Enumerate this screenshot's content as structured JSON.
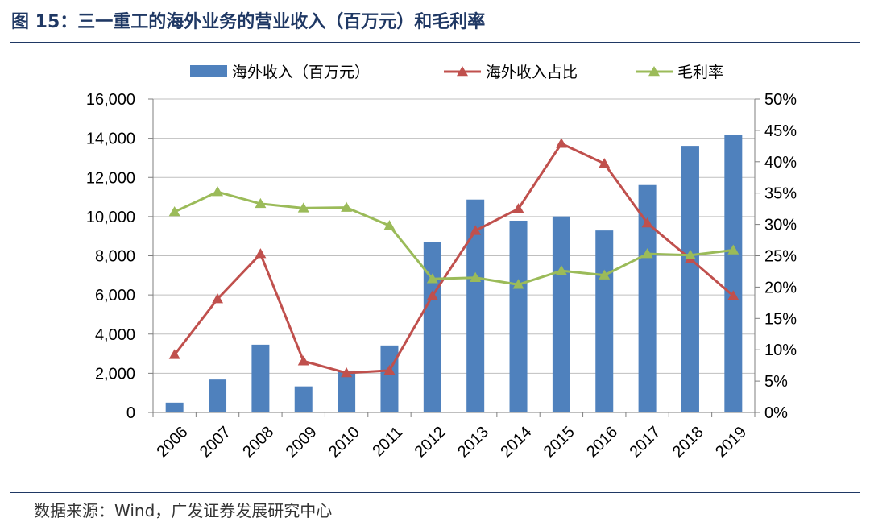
{
  "header": {
    "title": "图 15：三一重工的海外业务的营业收入（百万元）和毛利率"
  },
  "footer": {
    "source": "数据来源：Wind，广发证券发展研究中心"
  },
  "chart_data": {
    "type": "bar",
    "categories": [
      "2006",
      "2007",
      "2008",
      "2009",
      "2010",
      "2011",
      "2012",
      "2013",
      "2014",
      "2015",
      "2016",
      "2017",
      "2018",
      "2019"
    ],
    "series": [
      {
        "name": "海外收入（百万元）",
        "kind": "bar",
        "axis": "left",
        "color": "#4f81bd",
        "values": [
          500,
          1680,
          3460,
          1330,
          2140,
          3420,
          8700,
          10870,
          9790,
          10010,
          9290,
          11610,
          13610,
          14170
        ]
      },
      {
        "name": "海外收入占比",
        "kind": "line",
        "axis": "right",
        "color": "#c0504d",
        "marker": "triangle",
        "values": [
          9.2,
          18.1,
          25.3,
          8.2,
          6.3,
          6.7,
          18.6,
          29.0,
          32.5,
          42.9,
          39.7,
          30.2,
          24.5,
          18.6
        ]
      },
      {
        "name": "毛利率",
        "kind": "line",
        "axis": "right",
        "color": "#9bbb59",
        "marker": "triangle",
        "values": [
          32.0,
          35.2,
          33.3,
          32.6,
          32.7,
          29.8,
          21.3,
          21.5,
          20.4,
          22.6,
          21.9,
          25.3,
          25.1,
          25.9
        ]
      }
    ],
    "y_left": {
      "ylim": [
        0,
        16000
      ],
      "ticks": [
        0,
        2000,
        4000,
        6000,
        8000,
        10000,
        12000,
        14000,
        16000
      ],
      "tick_labels": [
        "0",
        "2,000",
        "4,000",
        "6,000",
        "8,000",
        "10,000",
        "12,000",
        "14,000",
        "16,000"
      ]
    },
    "y_right": {
      "ylim": [
        0,
        50
      ],
      "ticks": [
        0,
        5,
        10,
        15,
        20,
        25,
        30,
        35,
        40,
        45,
        50
      ],
      "tick_labels": [
        "0%",
        "5%",
        "10%",
        "15%",
        "20%",
        "25%",
        "30%",
        "35%",
        "40%",
        "45%",
        "50%"
      ]
    },
    "grid": true,
    "legend_position": "top"
  }
}
